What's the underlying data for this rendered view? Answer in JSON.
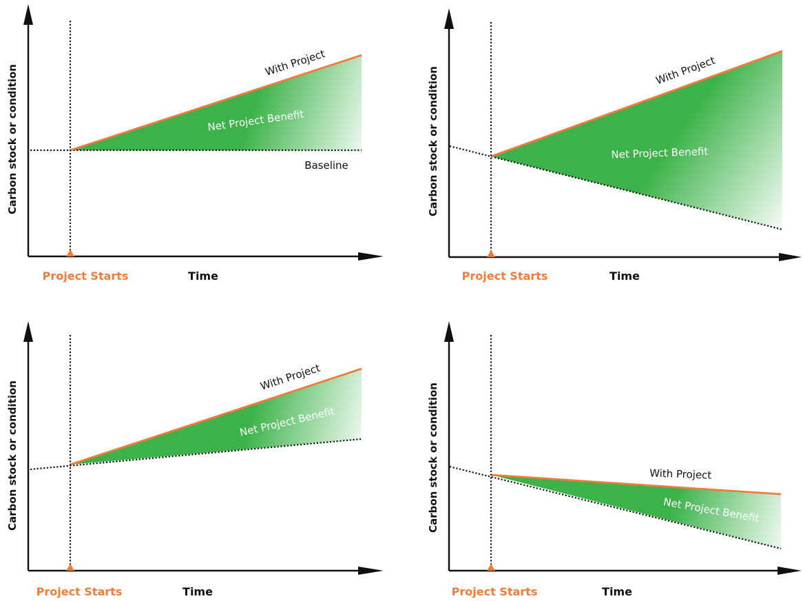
{
  "colors": {
    "with_project": "#f07c3a",
    "benefit_dark": "#3db24a",
    "benefit_light": "#ffffff",
    "axis": "#111111",
    "project_starts": "#f07c3a"
  },
  "panels": [
    {
      "id": "top-left",
      "y_axis_label": "Carbon stock or condition",
      "x_axis_label": "Time",
      "start_label": "Project Starts",
      "with_project_label": "With Project",
      "benefit_label": "Net Project Benefit",
      "baseline_label": "Baseline",
      "baseline_trend": "flat"
    },
    {
      "id": "top-right",
      "y_axis_label": "Carbon stock or condition",
      "x_axis_label": "Time",
      "start_label": "Project Starts",
      "with_project_label": "With Project",
      "benefit_label": "Net Project Benefit",
      "baseline_label": "",
      "baseline_trend": "declining"
    },
    {
      "id": "bottom-left",
      "y_axis_label": "Carbon stock or condition",
      "x_axis_label": "Time",
      "start_label": "Project Starts",
      "with_project_label": "With Project",
      "benefit_label": "Net Project Benefit",
      "baseline_label": "",
      "baseline_trend": "rising"
    },
    {
      "id": "bottom-right",
      "y_axis_label": "Carbon stock or condition",
      "x_axis_label": "Time",
      "start_label": "Project Starts",
      "with_project_label": "With Project",
      "benefit_label": "Net Project Benefit",
      "baseline_label": "",
      "baseline_trend": "declining"
    }
  ]
}
